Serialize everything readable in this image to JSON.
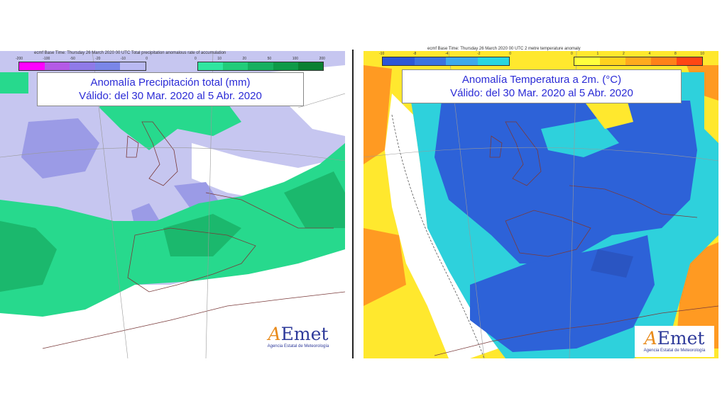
{
  "left": {
    "header": "ecmf Base Time: Thursday 26 March 2020 00 UTC Total precipitation anomalous rate of accumulation",
    "title_line1": "Anomalía Precipitación total (mm)",
    "title_line2": "Válido: del 30 Mar. 2020 al 5 Abr. 2020",
    "legend_negative_colors": [
      "#ff00ff",
      "#b45ae6",
      "#8f7ae8",
      "#7a86e8",
      "#b9b9f2"
    ],
    "legend_positive_colors": [
      "#2fe6a0",
      "#22cc7a",
      "#17b060",
      "#0e9a48",
      "#0a8032"
    ],
    "legend_ticks_negative": [
      "-200",
      "-100",
      "-50",
      "-20",
      "-10",
      "0"
    ],
    "legend_ticks_positive": [
      "0",
      "10",
      "20",
      "50",
      "100",
      "200"
    ]
  },
  "right": {
    "header": "ecmf Base Time: Thursday 26 March 2020 00 UTC 2 metre temperature anomaly",
    "title_line1": "Anomalía Temperatura a 2m. (°C)",
    "title_line2": "Válido: del 30 Mar. 2020 al 5 Abr. 2020",
    "legend_negative_colors": [
      "#2c57d6",
      "#3b73e0",
      "#3ea9ec",
      "#29d6e0"
    ],
    "legend_positive_colors": [
      "#ffff3c",
      "#ffd21e",
      "#ffaa1e",
      "#ff8219",
      "#ff4614"
    ],
    "legend_ticks_negative": [
      "-10",
      "-8",
      "-4",
      "-2",
      "0"
    ],
    "legend_ticks_positive": [
      "0",
      "1",
      "2",
      "4",
      "8",
      "10"
    ]
  },
  "logo": {
    "name_a": "A",
    "name_rest": "Emet",
    "subtitle": "Agencia Estatal de Meteorología"
  },
  "colors": {
    "precip_negative": "#c6c6f0",
    "precip_negative_strong": "#9b9be6",
    "precip_positive": "#27d98d",
    "precip_positive_strong": "#1bb86d",
    "temp_cold": "#2d62d8",
    "temp_cold_mid": "#2ed1dc",
    "temp_warm": "#ffe82e",
    "temp_hot": "#ff9a22"
  }
}
